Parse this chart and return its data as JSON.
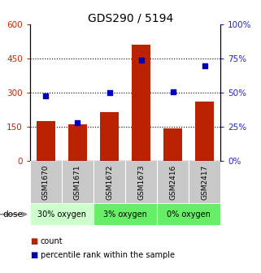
{
  "title": "GDS290 / 5194",
  "samples": [
    "GSM1670",
    "GSM1671",
    "GSM1672",
    "GSM1673",
    "GSM2416",
    "GSM2417"
  ],
  "counts": [
    175,
    160,
    215,
    510,
    145,
    260
  ],
  "percentiles": [
    48,
    28,
    50,
    74,
    51,
    70
  ],
  "ylim_left": [
    0,
    600
  ],
  "ylim_right": [
    0,
    100
  ],
  "yticks_left": [
    0,
    150,
    300,
    450,
    600
  ],
  "yticks_right": [
    0,
    25,
    50,
    75,
    100
  ],
  "bar_color": "#bb2200",
  "dot_color": "#0000bb",
  "tick_label_color_left": "#cc2200",
  "tick_label_color_right": "#2222cc",
  "sample_bg_color": "#c8c8c8",
  "group_info": [
    {
      "label": "30% oxygen",
      "start": 0,
      "end": 1,
      "color": "#ccffcc"
    },
    {
      "label": "3% oxygen",
      "start": 2,
      "end": 3,
      "color": "#66ee66"
    },
    {
      "label": "0% oxygen",
      "start": 4,
      "end": 5,
      "color": "#66ee66"
    }
  ],
  "dose_label": "dose",
  "legend_count": "count",
  "legend_percentile": "percentile rank within the sample",
  "title_fontsize": 10
}
